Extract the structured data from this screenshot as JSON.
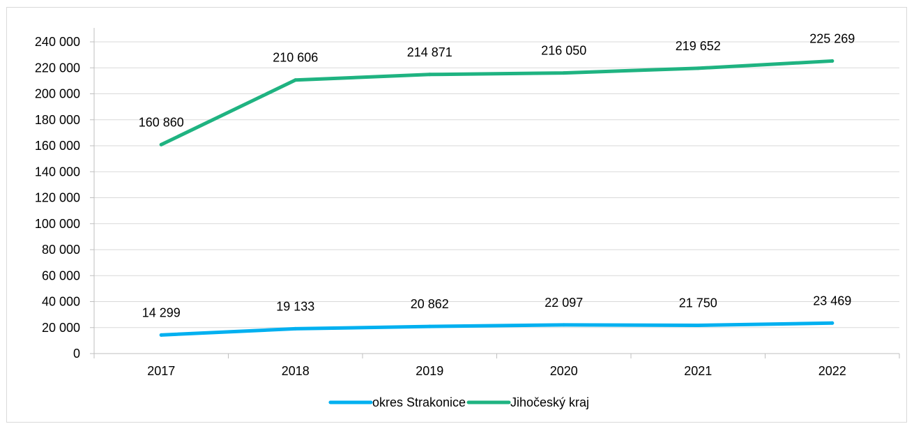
{
  "chart_data": {
    "type": "line",
    "title": "",
    "xlabel": "",
    "ylabel": "",
    "categories": [
      "2017",
      "2018",
      "2019",
      "2020",
      "2021",
      "2022"
    ],
    "ylim": [
      0,
      240000
    ],
    "y_ticks": [
      0,
      20000,
      40000,
      60000,
      80000,
      100000,
      120000,
      140000,
      160000,
      180000,
      200000,
      220000,
      240000
    ],
    "y_tick_labels": [
      "0",
      "20 000",
      "40 000",
      "60 000",
      "80 000",
      "100 000",
      "120 000",
      "140 000",
      "160 000",
      "180 000",
      "200 000",
      "220 000",
      "240 000"
    ],
    "grid": "horizontal",
    "legend_position": "bottom",
    "series": [
      {
        "name": "okres Strakonice",
        "color": "#00b0f0",
        "values": [
          14299,
          19133,
          20862,
          22097,
          21750,
          23469
        ],
        "labels": [
          "14 299",
          "19 133",
          "20 862",
          "22 097",
          "21 750",
          "23 469"
        ]
      },
      {
        "name": "Jihočeský kraj",
        "color": "#1fb381",
        "values": [
          160860,
          210606,
          214871,
          216050,
          219652,
          225269
        ],
        "labels": [
          "160 860",
          "210 606",
          "214 871",
          "216 050",
          "219 652",
          "225 269"
        ]
      }
    ]
  }
}
